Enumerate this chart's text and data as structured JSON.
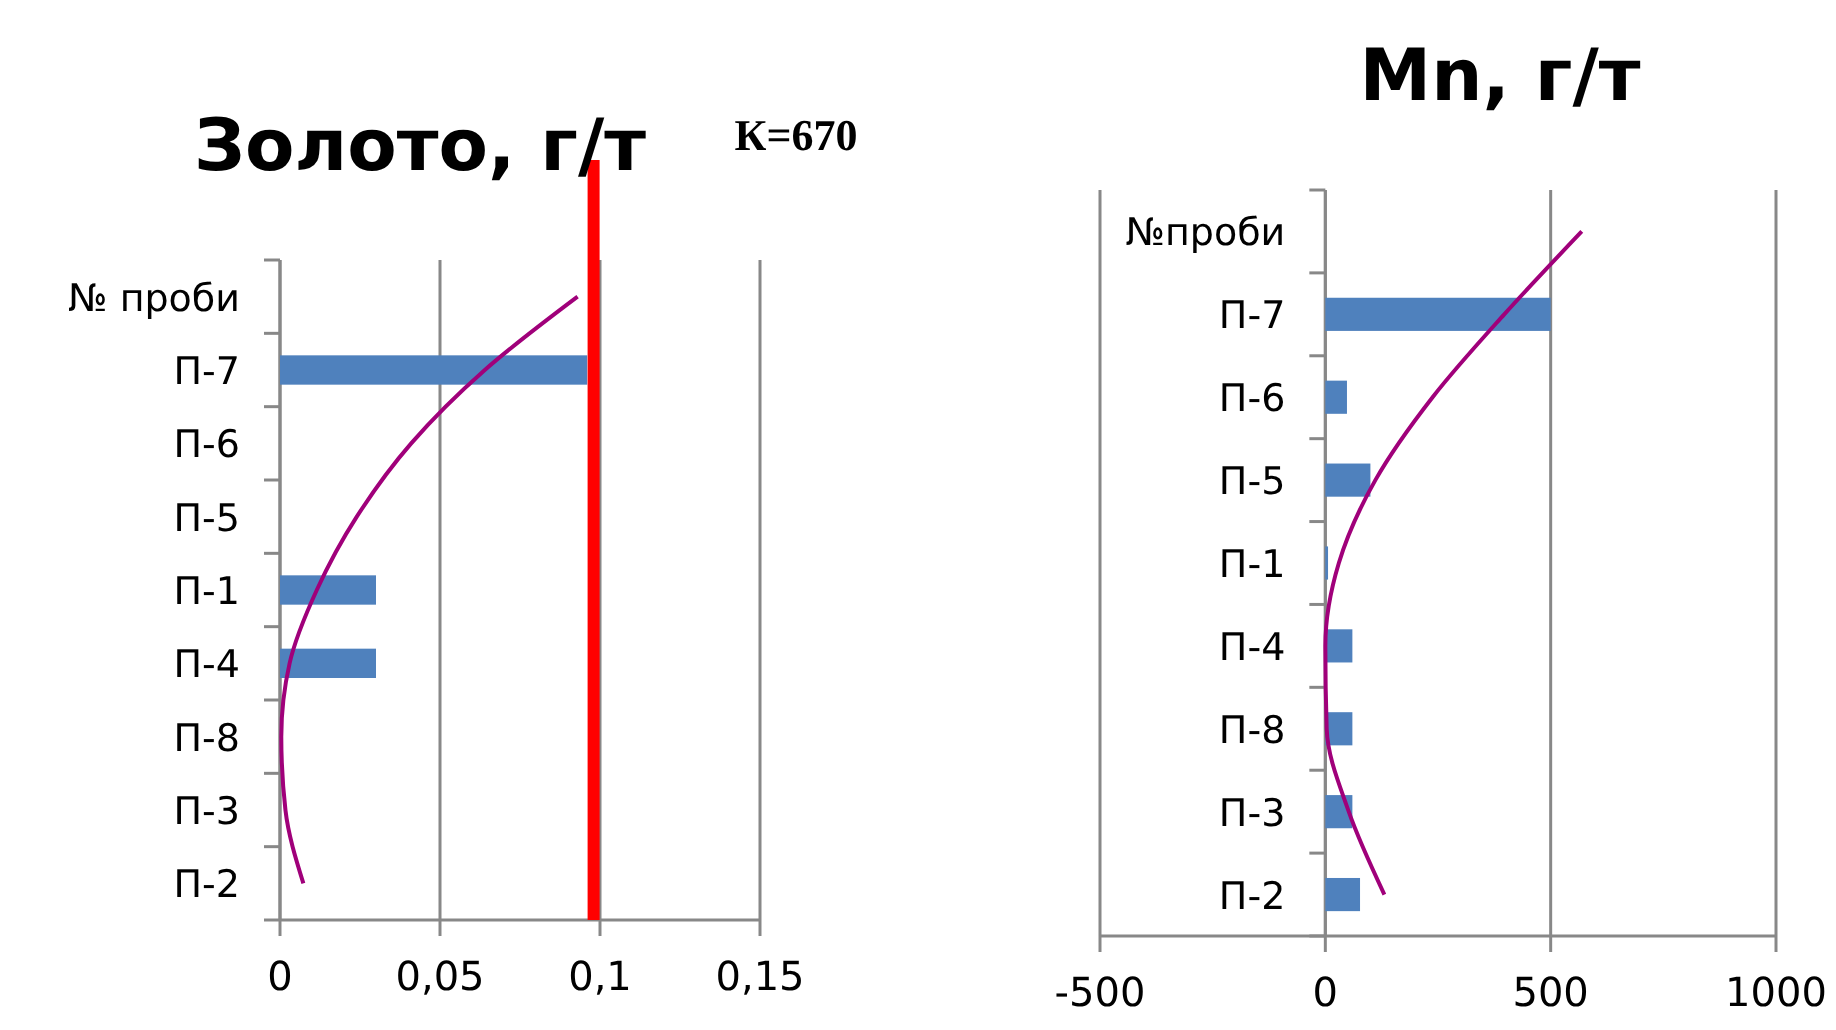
{
  "chart_data": [
    {
      "type": "bar",
      "orientation": "horizontal",
      "title": "Золото, г/т",
      "categories": [
        "№ проби",
        "П-7",
        "П-6",
        "П-5",
        "П-1",
        "П-4",
        "П-8",
        "П-3",
        "П-2"
      ],
      "xlim": [
        0,
        0.15
      ],
      "xticks": [
        0,
        {
          "value": 0.05,
          "label": "0,05"
        },
        {
          "value": 0.1,
          "label": "0,1"
        },
        {
          "value": 0.15,
          "label": "0,15"
        }
      ],
      "grid": "x",
      "series": [
        {
          "color": "#4f81bd",
          "values": [
            null,
            0.096,
            0,
            0,
            0.03,
            0.03,
            0,
            0,
            0
          ]
        },
        {
          "type": "line",
          "color": "#a0007a",
          "values": [
            0.093,
            0.064,
            0.041,
            0.024,
            0.0115,
            0.003,
            0.0004,
            0.0017,
            0.0073
          ]
        }
      ],
      "ref_lines": [
        {
          "axis": "x",
          "value": 0.098,
          "color": "#ff0000"
        }
      ],
      "annotations": [
        "К=670"
      ]
    },
    {
      "type": "bar",
      "orientation": "horizontal",
      "title": "Mn, г/т",
      "categories": [
        "№проби",
        "П-7",
        "П-6",
        "П-5",
        "П-1",
        "П-4",
        "П-8",
        "П-3",
        "П-2"
      ],
      "xlim": [
        -500,
        1000
      ],
      "xticks": [
        -500,
        0,
        500,
        1000
      ],
      "grid": "x",
      "series": [
        {
          "color": "#4f81bd",
          "values": [
            null,
            500,
            48,
            100,
            6,
            60,
            60,
            60,
            77
          ]
        },
        {
          "type": "line",
          "color": "#a0007a",
          "values": [
            569,
            397,
            238,
            111,
            30,
            0,
            3,
            52,
            131
          ]
        }
      ]
    }
  ]
}
